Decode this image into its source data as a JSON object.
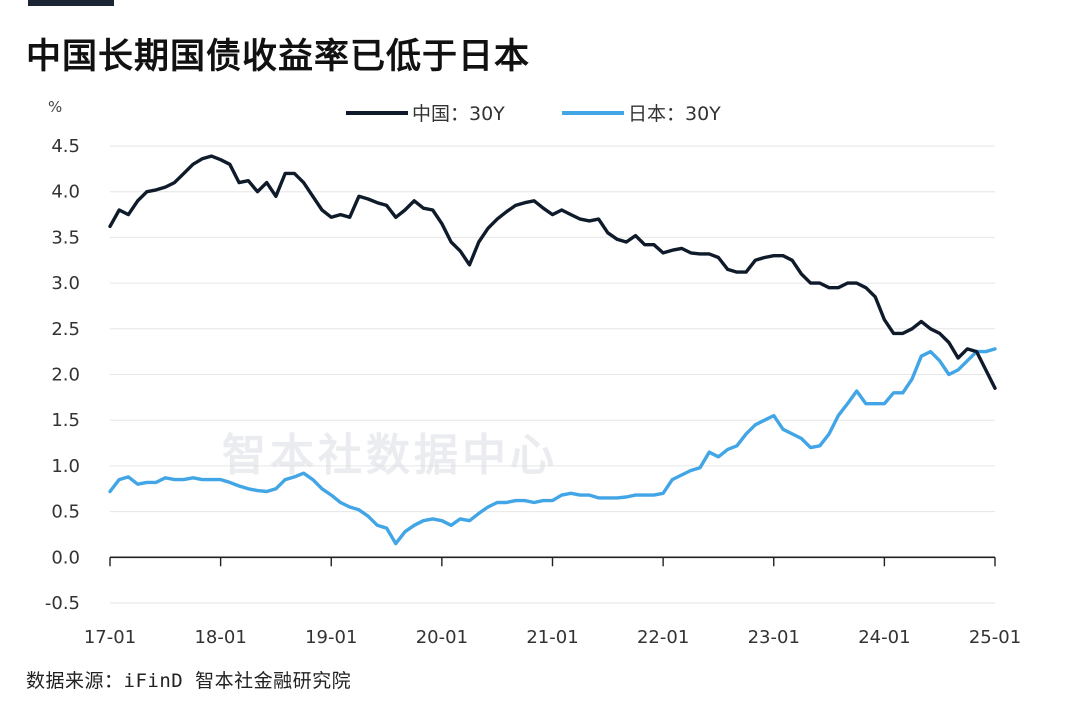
{
  "title": "中国长期国债收益率已低于日本",
  "source": "数据来源：iFinD 智本社金融研究院",
  "watermark": "智本社数据中心",
  "colors": {
    "china": "#0f1b2b",
    "japan": "#42a5e5",
    "grid": "#e6e6e6",
    "axis": "#222222",
    "top_bar": "#1c2533"
  },
  "chart_data": {
    "type": "line",
    "ylabel": "%",
    "ylim": [
      -0.5,
      4.5
    ],
    "yticks": [
      "4.5",
      "4.0",
      "3.5",
      "3.0",
      "2.5",
      "2.0",
      "1.5",
      "1.0",
      "0.5",
      "0.0",
      "-0.5"
    ],
    "xticks": [
      "17-01",
      "18-01",
      "19-01",
      "20-01",
      "21-01",
      "22-01",
      "23-01",
      "24-01",
      "25-01"
    ],
    "xlim": [
      "2017-01",
      "2025-01"
    ],
    "grid": true,
    "legend_position": "top",
    "series": [
      {
        "name": "中国：30Y",
        "points": [
          [
            "2017-01",
            3.62
          ],
          [
            "2017-02",
            3.8
          ],
          [
            "2017-03",
            3.75
          ],
          [
            "2017-04",
            3.9
          ],
          [
            "2017-05",
            4.0
          ],
          [
            "2017-06",
            4.02
          ],
          [
            "2017-07",
            4.05
          ],
          [
            "2017-08",
            4.1
          ],
          [
            "2017-09",
            4.2
          ],
          [
            "2017-10",
            4.3
          ],
          [
            "2017-11",
            4.36
          ],
          [
            "2017-12",
            4.39
          ],
          [
            "2018-01",
            4.35
          ],
          [
            "2018-02",
            4.3
          ],
          [
            "2018-03",
            4.1
          ],
          [
            "2018-04",
            4.12
          ],
          [
            "2018-05",
            4.0
          ],
          [
            "2018-06",
            4.1
          ],
          [
            "2018-07",
            3.95
          ],
          [
            "2018-08",
            4.2
          ],
          [
            "2018-09",
            4.2
          ],
          [
            "2018-10",
            4.1
          ],
          [
            "2018-11",
            3.95
          ],
          [
            "2018-12",
            3.8
          ],
          [
            "2019-01",
            3.72
          ],
          [
            "2019-02",
            3.75
          ],
          [
            "2019-03",
            3.72
          ],
          [
            "2019-04",
            3.95
          ],
          [
            "2019-05",
            3.92
          ],
          [
            "2019-06",
            3.88
          ],
          [
            "2019-07",
            3.85
          ],
          [
            "2019-08",
            3.72
          ],
          [
            "2019-09",
            3.8
          ],
          [
            "2019-10",
            3.9
          ],
          [
            "2019-11",
            3.82
          ],
          [
            "2019-12",
            3.8
          ],
          [
            "2020-01",
            3.65
          ],
          [
            "2020-02",
            3.45
          ],
          [
            "2020-03",
            3.35
          ],
          [
            "2020-04",
            3.2
          ],
          [
            "2020-05",
            3.45
          ],
          [
            "2020-06",
            3.6
          ],
          [
            "2020-07",
            3.7
          ],
          [
            "2020-08",
            3.78
          ],
          [
            "2020-09",
            3.85
          ],
          [
            "2020-10",
            3.88
          ],
          [
            "2020-11",
            3.9
          ],
          [
            "2020-12",
            3.82
          ],
          [
            "2021-01",
            3.75
          ],
          [
            "2021-02",
            3.8
          ],
          [
            "2021-03",
            3.75
          ],
          [
            "2021-04",
            3.7
          ],
          [
            "2021-05",
            3.68
          ],
          [
            "2021-06",
            3.7
          ],
          [
            "2021-07",
            3.55
          ],
          [
            "2021-08",
            3.48
          ],
          [
            "2021-09",
            3.45
          ],
          [
            "2021-10",
            3.52
          ],
          [
            "2021-11",
            3.42
          ],
          [
            "2021-12",
            3.42
          ],
          [
            "2022-01",
            3.33
          ],
          [
            "2022-02",
            3.36
          ],
          [
            "2022-03",
            3.38
          ],
          [
            "2022-04",
            3.33
          ],
          [
            "2022-05",
            3.32
          ],
          [
            "2022-06",
            3.32
          ],
          [
            "2022-07",
            3.28
          ],
          [
            "2022-08",
            3.15
          ],
          [
            "2022-09",
            3.12
          ],
          [
            "2022-10",
            3.12
          ],
          [
            "2022-11",
            3.25
          ],
          [
            "2022-12",
            3.28
          ],
          [
            "2023-01",
            3.3
          ],
          [
            "2023-02",
            3.3
          ],
          [
            "2023-03",
            3.25
          ],
          [
            "2023-04",
            3.1
          ],
          [
            "2023-05",
            3.0
          ],
          [
            "2023-06",
            3.0
          ],
          [
            "2023-07",
            2.95
          ],
          [
            "2023-08",
            2.95
          ],
          [
            "2023-09",
            3.0
          ],
          [
            "2023-10",
            3.0
          ],
          [
            "2023-11",
            2.95
          ],
          [
            "2023-12",
            2.85
          ],
          [
            "2024-01",
            2.6
          ],
          [
            "2024-02",
            2.45
          ],
          [
            "2024-03",
            2.45
          ],
          [
            "2024-04",
            2.5
          ],
          [
            "2024-05",
            2.58
          ],
          [
            "2024-06",
            2.5
          ],
          [
            "2024-07",
            2.45
          ],
          [
            "2024-08",
            2.35
          ],
          [
            "2024-09",
            2.18
          ],
          [
            "2024-10",
            2.28
          ],
          [
            "2024-11",
            2.25
          ],
          [
            "2024-12",
            2.05
          ],
          [
            "2025-01",
            1.85
          ]
        ]
      },
      {
        "name": "日本：30Y",
        "points": [
          [
            "2017-01",
            0.72
          ],
          [
            "2017-02",
            0.85
          ],
          [
            "2017-03",
            0.88
          ],
          [
            "2017-04",
            0.8
          ],
          [
            "2017-05",
            0.82
          ],
          [
            "2017-06",
            0.82
          ],
          [
            "2017-07",
            0.87
          ],
          [
            "2017-08",
            0.85
          ],
          [
            "2017-09",
            0.85
          ],
          [
            "2017-10",
            0.87
          ],
          [
            "2017-11",
            0.85
          ],
          [
            "2017-12",
            0.85
          ],
          [
            "2018-01",
            0.85
          ],
          [
            "2018-02",
            0.82
          ],
          [
            "2018-03",
            0.78
          ],
          [
            "2018-04",
            0.75
          ],
          [
            "2018-05",
            0.73
          ],
          [
            "2018-06",
            0.72
          ],
          [
            "2018-07",
            0.75
          ],
          [
            "2018-08",
            0.85
          ],
          [
            "2018-09",
            0.88
          ],
          [
            "2018-10",
            0.92
          ],
          [
            "2018-11",
            0.85
          ],
          [
            "2018-12",
            0.75
          ],
          [
            "2019-01",
            0.68
          ],
          [
            "2019-02",
            0.6
          ],
          [
            "2019-03",
            0.55
          ],
          [
            "2019-04",
            0.52
          ],
          [
            "2019-05",
            0.45
          ],
          [
            "2019-06",
            0.35
          ],
          [
            "2019-07",
            0.32
          ],
          [
            "2019-08",
            0.15
          ],
          [
            "2019-09",
            0.28
          ],
          [
            "2019-10",
            0.35
          ],
          [
            "2019-11",
            0.4
          ],
          [
            "2019-12",
            0.42
          ],
          [
            "2020-01",
            0.4
          ],
          [
            "2020-02",
            0.35
          ],
          [
            "2020-03",
            0.42
          ],
          [
            "2020-04",
            0.4
          ],
          [
            "2020-05",
            0.48
          ],
          [
            "2020-06",
            0.55
          ],
          [
            "2020-07",
            0.6
          ],
          [
            "2020-08",
            0.6
          ],
          [
            "2020-09",
            0.62
          ],
          [
            "2020-10",
            0.62
          ],
          [
            "2020-11",
            0.6
          ],
          [
            "2020-12",
            0.62
          ],
          [
            "2021-01",
            0.62
          ],
          [
            "2021-02",
            0.68
          ],
          [
            "2021-03",
            0.7
          ],
          [
            "2021-04",
            0.68
          ],
          [
            "2021-05",
            0.68
          ],
          [
            "2021-06",
            0.65
          ],
          [
            "2021-07",
            0.65
          ],
          [
            "2021-08",
            0.65
          ],
          [
            "2021-09",
            0.66
          ],
          [
            "2021-10",
            0.68
          ],
          [
            "2021-11",
            0.68
          ],
          [
            "2021-12",
            0.68
          ],
          [
            "2022-01",
            0.7
          ],
          [
            "2022-02",
            0.85
          ],
          [
            "2022-03",
            0.9
          ],
          [
            "2022-04",
            0.95
          ],
          [
            "2022-05",
            0.98
          ],
          [
            "2022-06",
            1.15
          ],
          [
            "2022-07",
            1.1
          ],
          [
            "2022-08",
            1.18
          ],
          [
            "2022-09",
            1.22
          ],
          [
            "2022-10",
            1.35
          ],
          [
            "2022-11",
            1.45
          ],
          [
            "2022-12",
            1.5
          ],
          [
            "2023-01",
            1.55
          ],
          [
            "2023-02",
            1.4
          ],
          [
            "2023-03",
            1.35
          ],
          [
            "2023-04",
            1.3
          ],
          [
            "2023-05",
            1.2
          ],
          [
            "2023-06",
            1.22
          ],
          [
            "2023-07",
            1.35
          ],
          [
            "2023-08",
            1.55
          ],
          [
            "2023-09",
            1.68
          ],
          [
            "2023-10",
            1.82
          ],
          [
            "2023-11",
            1.68
          ],
          [
            "2023-12",
            1.68
          ],
          [
            "2024-01",
            1.68
          ],
          [
            "2024-02",
            1.8
          ],
          [
            "2024-03",
            1.8
          ],
          [
            "2024-04",
            1.95
          ],
          [
            "2024-05",
            2.2
          ],
          [
            "2024-06",
            2.25
          ],
          [
            "2024-07",
            2.15
          ],
          [
            "2024-08",
            2.0
          ],
          [
            "2024-09",
            2.05
          ],
          [
            "2024-10",
            2.15
          ],
          [
            "2024-11",
            2.25
          ],
          [
            "2024-12",
            2.25
          ],
          [
            "2025-01",
            2.28
          ]
        ]
      }
    ]
  }
}
